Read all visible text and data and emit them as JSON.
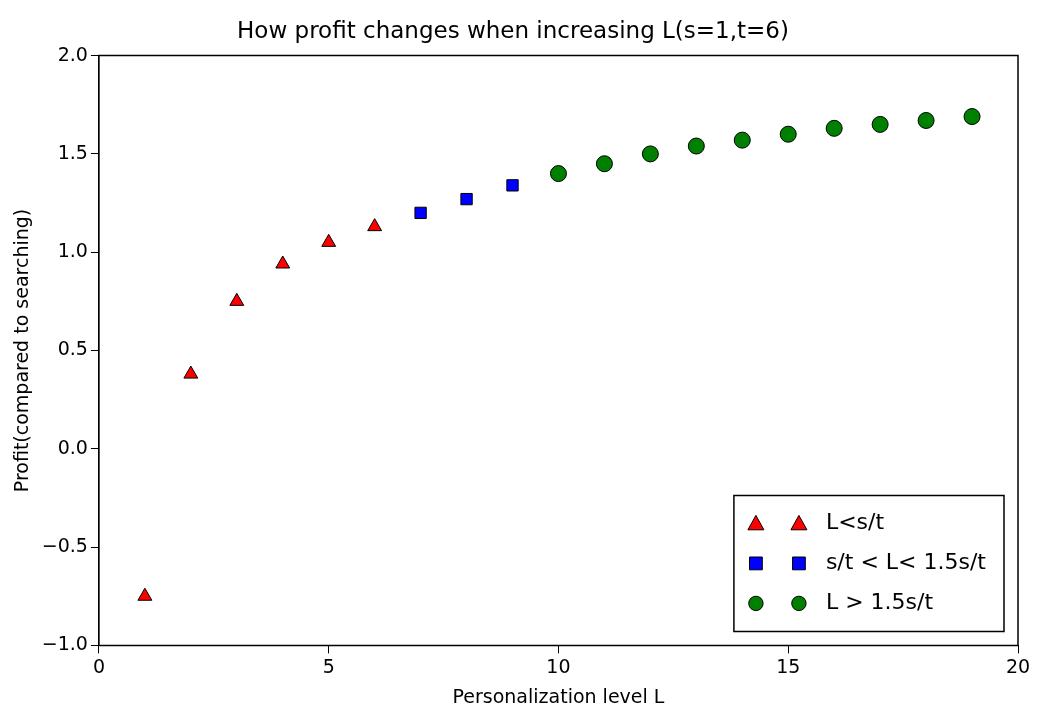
{
  "chart_data": {
    "type": "scatter",
    "title": "How profit changes when increasing L(s=1,t=6)",
    "xlabel": "Personalization level L",
    "ylabel": "Profit(compared to searching)",
    "xlim": [
      0,
      20
    ],
    "xticks": [
      0,
      5,
      10,
      15,
      20
    ],
    "ylim": [
      -1,
      2
    ],
    "yticks": [
      {
        "value": -1,
        "label": "−1.0"
      },
      {
        "value": -0.5,
        "label": "−0.5"
      },
      {
        "value": 0,
        "label": "0.0"
      },
      {
        "value": 0.5,
        "label": "0.5"
      },
      {
        "value": 1,
        "label": "1.0"
      },
      {
        "value": 1.5,
        "label": "1.5"
      },
      {
        "value": 2,
        "label": "2.0"
      }
    ],
    "grid": false,
    "legend": "bottom right",
    "series": [
      {
        "name": "L<s/t",
        "color": "#ff0000",
        "marker": "triangle",
        "x": [
          1,
          2,
          3,
          4,
          5,
          6
        ],
        "values": [
          -0.75,
          0.38,
          0.75,
          0.94,
          1.05,
          1.13
        ]
      },
      {
        "name": "s/t < L< 1.5s/t",
        "color": "#0000ff",
        "marker": "square",
        "x": [
          7,
          8,
          9
        ],
        "values": [
          1.2,
          1.27,
          1.34
        ]
      },
      {
        "name": "L > 1.5s/t",
        "color": "#008000",
        "marker": "circle",
        "x": [
          10,
          11,
          12,
          13,
          14,
          15,
          16,
          17,
          18,
          19
        ],
        "values": [
          1.4,
          1.45,
          1.5,
          1.54,
          1.57,
          1.6,
          1.63,
          1.65,
          1.67,
          1.69
        ]
      }
    ]
  }
}
